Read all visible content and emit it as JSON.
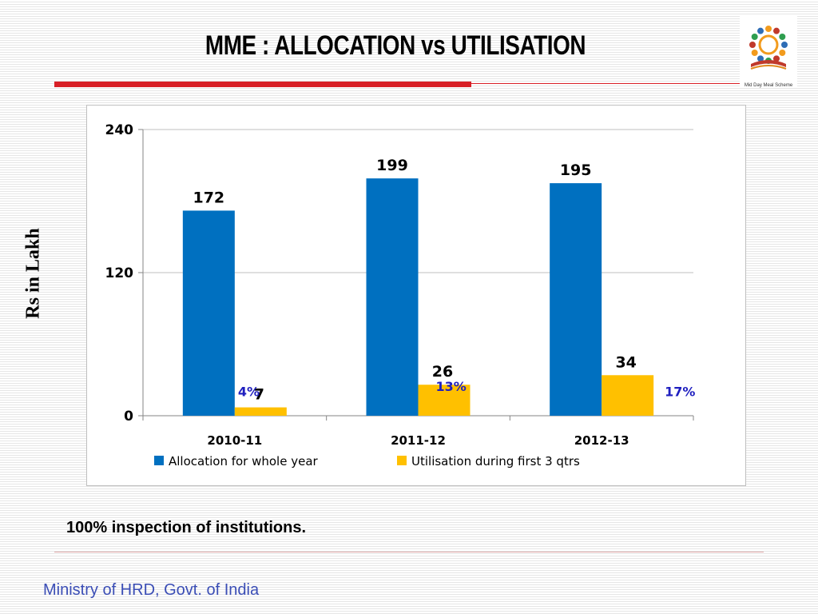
{
  "slide": {
    "title": "MME : ALLOCATION vs UTILISATION",
    "ylabel": "Rs in Lakh",
    "note": "100% inspection of institutions.",
    "footer": "Ministry of HRD, Govt. of India",
    "logo_caption": "Mid Day Meal Scheme",
    "colors": {
      "accent_red": "#d81f26",
      "footer_blue": "#3a4db5"
    }
  },
  "chart_data": {
    "type": "bar",
    "categories": [
      "2010-11",
      "2011-12",
      "2012-13"
    ],
    "series": [
      {
        "name": "Allocation for whole year",
        "values": [
          172,
          199,
          195
        ],
        "color": "#0070c0"
      },
      {
        "name": "Utilisation during first 3 qtrs",
        "values": [
          7,
          26,
          34
        ],
        "color": "#ffc000"
      }
    ],
    "annotations": [
      "4%",
      "13%",
      "17%"
    ],
    "annotation_color": "#1f1fbf",
    "yticks": [
      0,
      120,
      240
    ],
    "ylim": [
      0,
      240
    ],
    "grid": true,
    "legend": "bottom"
  }
}
